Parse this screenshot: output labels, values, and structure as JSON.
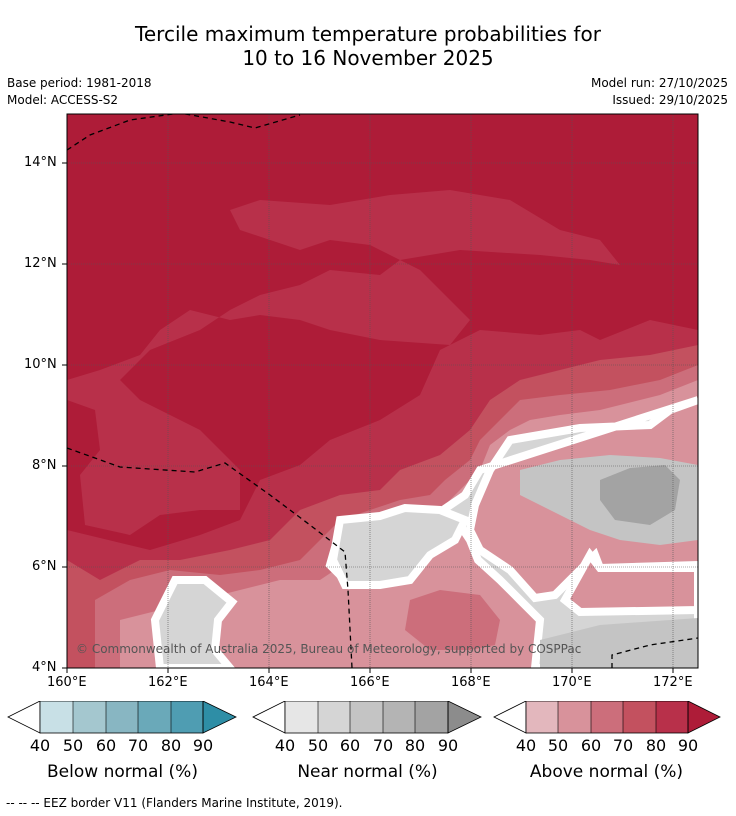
{
  "title_line1": "Tercile maximum temperature probabilities for",
  "title_line2": "10 to 16 November 2025",
  "meta": {
    "base_period": "Base period: 1981-2018",
    "model": "Model: ACCESS-S2",
    "model_run": "Model run: 27/10/2025",
    "issued": "Issued: 29/10/2025"
  },
  "axes": {
    "y_ticks": [
      "14°N",
      "12°N",
      "10°N",
      "8°N",
      "6°N",
      "4°N"
    ],
    "x_ticks": [
      "160°E",
      "162°E",
      "164°E",
      "166°E",
      "168°E",
      "170°E",
      "172°E"
    ],
    "lat_range": [
      4,
      15
    ],
    "lon_range": [
      160,
      172.5
    ],
    "grid": true
  },
  "copyright": "© Commonwealth of Australia 2025, Bureau of Meteorology, supported by COSPPac",
  "legends": [
    {
      "title": "Below normal (%)",
      "ticks": [
        "40",
        "50",
        "60",
        "70",
        "80",
        "90"
      ],
      "colors": [
        "#c8e0e6",
        "#a4c7cf",
        "#88b6c2",
        "#6aa9b9",
        "#4f9db2",
        "#2e8ea6"
      ]
    },
    {
      "title": "Near normal (%)",
      "ticks": [
        "40",
        "50",
        "60",
        "70",
        "80",
        "90"
      ],
      "colors": [
        "#e6e6e6",
        "#d5d5d5",
        "#c4c4c4",
        "#b4b4b4",
        "#a3a3a3",
        "#8c8c8c"
      ]
    },
    {
      "title": "Above normal (%)",
      "ticks": [
        "40",
        "50",
        "60",
        "70",
        "80",
        "90"
      ],
      "colors": [
        "#e3b7bd",
        "#d8929b",
        "#cc6e7b",
        "#c3515f",
        "#b8304a",
        "#ae1c38"
      ]
    }
  ],
  "footer": "--  --  -- EEZ border V11 (Flanders Marine Institute, 2019)."
}
